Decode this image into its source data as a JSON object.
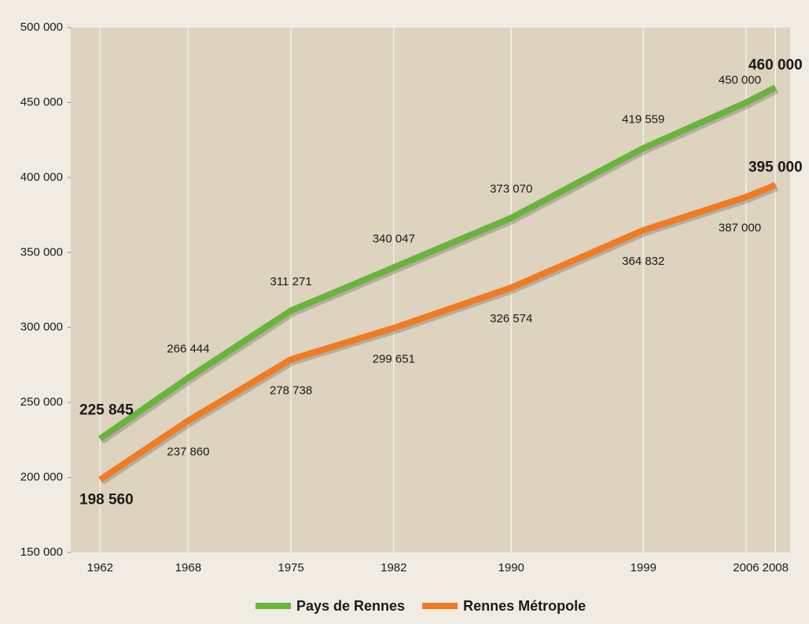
{
  "chart_data": {
    "type": "line",
    "x": [
      1962,
      1968,
      1975,
      1982,
      1990,
      1999,
      2006,
      2008
    ],
    "xlim": [
      1960,
      2009
    ],
    "xticks": [
      1962,
      1968,
      1975,
      1982,
      1990,
      1999,
      2006,
      2008
    ],
    "ylim": [
      150000,
      500000
    ],
    "yticks": [
      {
        "value": 150000,
        "label": "150 000"
      },
      {
        "value": 200000,
        "label": "200 000"
      },
      {
        "value": 250000,
        "label": "250 000"
      },
      {
        "value": 300000,
        "label": "300 000"
      },
      {
        "value": 350000,
        "label": "350 000"
      },
      {
        "value": 400000,
        "label": "400 000"
      },
      {
        "value": 450000,
        "label": "450 000"
      },
      {
        "value": 500000,
        "label": "500 000"
      }
    ],
    "grid": true,
    "series": [
      {
        "name": "Pays de Rennes",
        "color": "#69b43c",
        "values": [
          225845,
          266444,
          311271,
          340047,
          373070,
          419559,
          450000,
          460000
        ],
        "value_labels": [
          "225 845",
          "266 444",
          "311 271",
          "340 047",
          "373 070",
          "419 559",
          "450 000",
          "460 000"
        ]
      },
      {
        "name": "Rennes Métropole",
        "color": "#f07b22",
        "values": [
          198560,
          237860,
          278738,
          299651,
          326574,
          364832,
          387000,
          395000
        ],
        "value_labels": [
          "198 560",
          "237 860",
          "278 738",
          "299 651",
          "326 574",
          "364 832",
          "387 000",
          "395 000"
        ]
      }
    ]
  }
}
